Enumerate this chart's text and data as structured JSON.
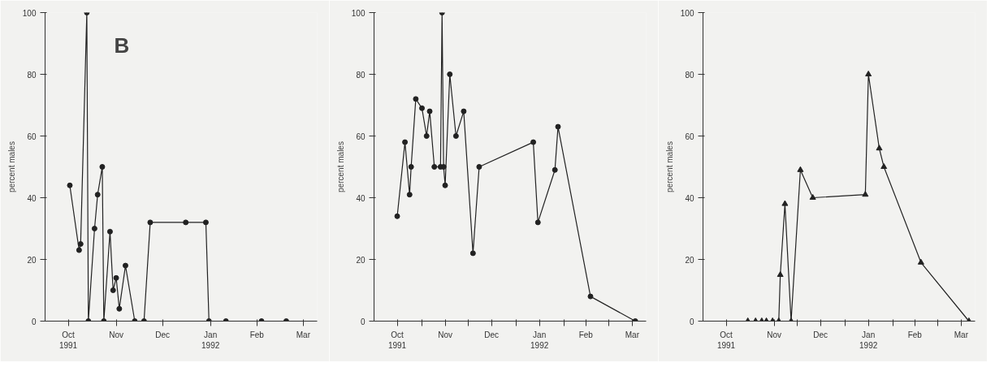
{
  "chart_data": [
    {
      "type": "line",
      "ylabel": "percent males",
      "annotations": [
        "B"
      ],
      "marker": "circle",
      "grid": false,
      "xlim": [
        "1991-10-01",
        "1992-03-25"
      ],
      "ylim": [
        0,
        100
      ],
      "yticks": [
        0,
        20,
        40,
        60,
        80,
        100
      ],
      "xticks": [
        {
          "value": "1991-10-16",
          "label": "Oct\n1991"
        },
        {
          "value": "1991-11-16",
          "label": "Nov"
        },
        {
          "value": "1991-12-16",
          "label": "Dec"
        },
        {
          "value": "1992-01-16",
          "label": "Jan\n1992"
        },
        {
          "value": "1992-02-15",
          "label": "Feb"
        },
        {
          "value": "1992-03-16",
          "label": "Mar"
        }
      ],
      "series": [
        {
          "color": "#222222",
          "x": [
            "1991-10-17",
            "1991-10-23",
            "1991-10-24",
            "1991-10-28",
            "1991-10-29",
            "1991-11-02",
            "1991-11-04",
            "1991-11-07",
            "1991-11-08",
            "1991-11-12",
            "1991-11-14",
            "1991-11-16",
            "1991-11-18",
            "1991-11-22",
            "1991-11-28",
            "1991-12-04",
            "1991-12-08",
            "1991-12-31",
            "1992-01-13",
            "1992-01-15",
            "1992-01-26",
            "1992-02-18",
            "1992-03-05"
          ],
          "values": [
            44,
            23,
            25,
            100,
            0,
            30,
            41,
            50,
            0,
            29,
            10,
            14,
            4,
            18,
            0,
            0,
            32,
            32,
            32,
            0,
            0,
            0,
            0
          ]
        }
      ]
    },
    {
      "type": "line",
      "ylabel": "percent males",
      "marker": "circle",
      "grid": false,
      "xlim": [
        "1991-10-01",
        "1992-03-25"
      ],
      "ylim": [
        0,
        100
      ],
      "yticks": [
        0,
        20,
        40,
        60,
        80,
        100
      ],
      "xticks": [
        {
          "value": "1991-10-16",
          "label": "Oct\n1991"
        },
        {
          "value": "1991-11-16",
          "label": "Nov"
        },
        {
          "value": "1991-12-16",
          "label": "Dec"
        },
        {
          "value": "1992-01-16",
          "label": "Jan\n1992"
        },
        {
          "value": "1992-02-15",
          "label": "Feb"
        },
        {
          "value": "1992-03-16",
          "label": "Mar"
        },
        {
          "value": "1991-11-01",
          "label": null
        },
        {
          "value": "1991-12-01",
          "label": null
        },
        {
          "value": "1992-01-01",
          "label": null
        },
        {
          "value": "1992-02-01",
          "label": null
        },
        {
          "value": "1992-03-01",
          "label": null
        }
      ],
      "series": [
        {
          "color": "#222222",
          "x": [
            "1991-10-16",
            "1991-10-21",
            "1991-10-24",
            "1991-10-25",
            "1991-10-28",
            "1991-11-01",
            "1991-11-04",
            "1991-11-06",
            "1991-11-09",
            "1991-11-13",
            "1991-11-14",
            "1991-11-15",
            "1991-11-16",
            "1991-11-19",
            "1991-11-23",
            "1991-11-28",
            "1991-12-04",
            "1991-12-08",
            "1992-01-12",
            "1992-01-15",
            "1992-01-26",
            "1992-01-28",
            "1992-02-18",
            "1992-03-18"
          ],
          "values": [
            34,
            58,
            41,
            50,
            72,
            69,
            60,
            68,
            50,
            50,
            100,
            50,
            44,
            80,
            60,
            68,
            22,
            50,
            58,
            32,
            49,
            63,
            8,
            0
          ]
        }
      ]
    },
    {
      "type": "line",
      "ylabel": "percent males",
      "marker": "triangle",
      "grid": false,
      "xlim": [
        "1991-10-01",
        "1992-03-25"
      ],
      "ylim": [
        0,
        100
      ],
      "yticks": [
        0,
        20,
        40,
        60,
        80,
        100
      ],
      "xticks": [
        {
          "value": "1991-10-16",
          "label": "Oct\n1991"
        },
        {
          "value": "1991-11-16",
          "label": "Nov"
        },
        {
          "value": "1991-12-16",
          "label": "Dec"
        },
        {
          "value": "1992-01-16",
          "label": "Jan\n1992"
        },
        {
          "value": "1992-02-15",
          "label": "Feb"
        },
        {
          "value": "1992-03-16",
          "label": "Mar"
        },
        {
          "value": "1991-12-01",
          "label": null
        },
        {
          "value": "1992-01-01",
          "label": null
        },
        {
          "value": "1992-02-01",
          "label": null
        },
        {
          "value": "1992-03-01",
          "label": null
        }
      ],
      "series": [
        {
          "color": "#222222",
          "x": [
            "1991-10-30",
            "1991-11-04",
            "1991-11-08",
            "1991-11-11",
            "1991-11-15",
            "1991-11-19",
            "1991-11-20",
            "1991-11-23",
            "1991-11-27",
            "1991-12-03",
            "1991-12-11",
            "1992-01-14",
            "1992-01-16",
            "1992-01-23",
            "1992-01-26",
            "1992-02-19",
            "1992-03-21"
          ],
          "values": [
            0,
            0,
            0,
            0,
            0,
            0,
            15,
            38,
            0,
            49,
            40,
            41,
            80,
            56,
            50,
            19,
            0
          ]
        }
      ]
    }
  ]
}
